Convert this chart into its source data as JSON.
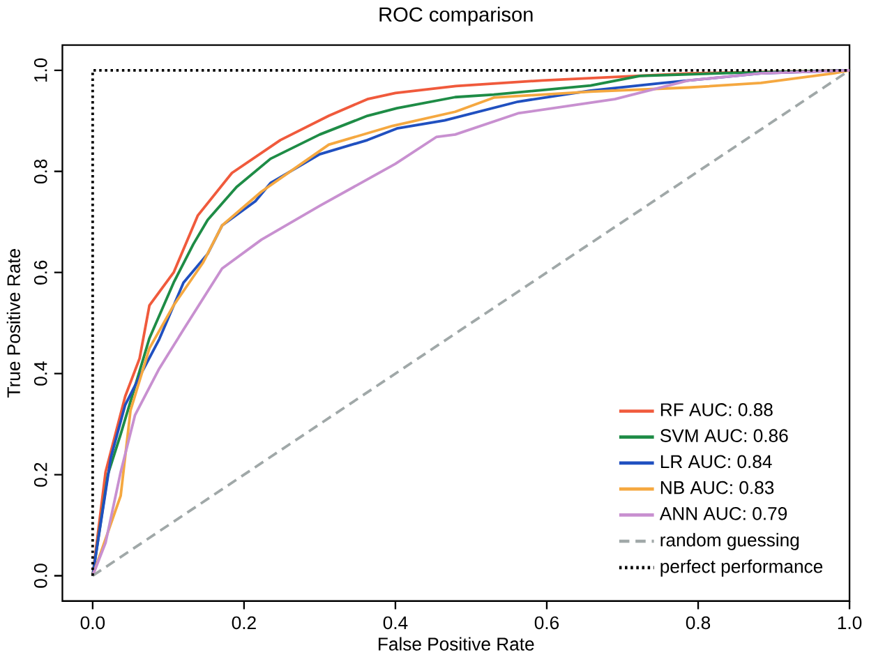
{
  "chart_data": {
    "type": "line",
    "title": "ROC comparison",
    "xlabel": "False Positive Rate",
    "ylabel": "True Positive Rate",
    "xlim": [
      -0.04,
      1.0
    ],
    "ylim": [
      -0.05,
      1.05
    ],
    "xticks": [
      {
        "value": 0,
        "label": "0.0"
      },
      0.2,
      0.4,
      0.6,
      0.8,
      {
        "value": 1,
        "label": "1.0"
      }
    ],
    "yticks": [
      {
        "value": 0,
        "label": "0.0"
      },
      0.2,
      0.4,
      0.6,
      0.8,
      {
        "value": 1,
        "label": "1.0"
      }
    ],
    "legend": "bottom right",
    "grid": false,
    "marker": "none",
    "series": [
      {
        "name": "RF AUC: 0.88",
        "color": "#f05a3c",
        "x": [
          0,
          0.017,
          0.043,
          0.062,
          0.075,
          0.107,
          0.139,
          0.184,
          0.248,
          0.312,
          0.363,
          0.4,
          0.48,
          0.594,
          0.79,
          1
        ],
        "values": [
          0,
          0.205,
          0.355,
          0.43,
          0.535,
          0.6,
          0.713,
          0.797,
          0.862,
          0.91,
          0.943,
          0.955,
          0.969,
          0.98,
          0.994,
          1
        ]
      },
      {
        "name": "SVM AUC: 0.86",
        "color": "#1e8c46",
        "x": [
          0,
          0.02,
          0.037,
          0.075,
          0.107,
          0.133,
          0.152,
          0.19,
          0.235,
          0.3,
          0.363,
          0.402,
          0.479,
          0.53,
          0.658,
          0.723,
          0.85,
          1
        ],
        "values": [
          0,
          0.2,
          0.28,
          0.47,
          0.58,
          0.656,
          0.704,
          0.769,
          0.825,
          0.873,
          0.91,
          0.925,
          0.947,
          0.952,
          0.97,
          0.989,
          0.995,
          1
        ]
      },
      {
        "name": "LR AUC: 0.84",
        "color": "#2050c0",
        "x": [
          0,
          0.024,
          0.043,
          0.062,
          0.088,
          0.12,
          0.152,
          0.171,
          0.215,
          0.235,
          0.3,
          0.363,
          0.402,
          0.465,
          0.562,
          0.658,
          0.754,
          0.883,
          1
        ],
        "values": [
          0,
          0.234,
          0.338,
          0.394,
          0.468,
          0.58,
          0.637,
          0.693,
          0.741,
          0.777,
          0.834,
          0.862,
          0.885,
          0.901,
          0.938,
          0.96,
          0.975,
          0.994,
          1
        ]
      },
      {
        "name": "NB AUC: 0.83",
        "color": "#f5a840",
        "x": [
          0,
          0.037,
          0.05,
          0.075,
          0.107,
          0.146,
          0.171,
          0.223,
          0.267,
          0.312,
          0.396,
          0.479,
          0.53,
          0.658,
          0.787,
          0.883,
          0.979,
          1
        ],
        "values": [
          0,
          0.158,
          0.327,
          0.45,
          0.535,
          0.62,
          0.693,
          0.76,
          0.806,
          0.853,
          0.89,
          0.918,
          0.946,
          0.958,
          0.966,
          0.975,
          0.994,
          1
        ]
      },
      {
        "name": "ANN AUC: 0.79",
        "color": "#c890d0",
        "x": [
          0,
          0.017,
          0.037,
          0.056,
          0.088,
          0.12,
          0.171,
          0.223,
          0.3,
          0.4,
          0.454,
          0.479,
          0.562,
          0.69,
          0.787,
          0.883,
          1
        ],
        "values": [
          0,
          0.065,
          0.205,
          0.318,
          0.41,
          0.487,
          0.608,
          0.665,
          0.732,
          0.815,
          0.868,
          0.873,
          0.915,
          0.943,
          0.98,
          0.994,
          1
        ]
      },
      {
        "name": "random guessing",
        "color": "#a0a8a8",
        "line_style": "dashed",
        "x": [
          0,
          1
        ],
        "values": [
          0,
          1
        ]
      },
      {
        "name": "perfect performance",
        "color": "#000000",
        "line_style": "dotted",
        "x": [
          0,
          0,
          1
        ],
        "values": [
          0,
          1,
          1
        ]
      }
    ]
  }
}
